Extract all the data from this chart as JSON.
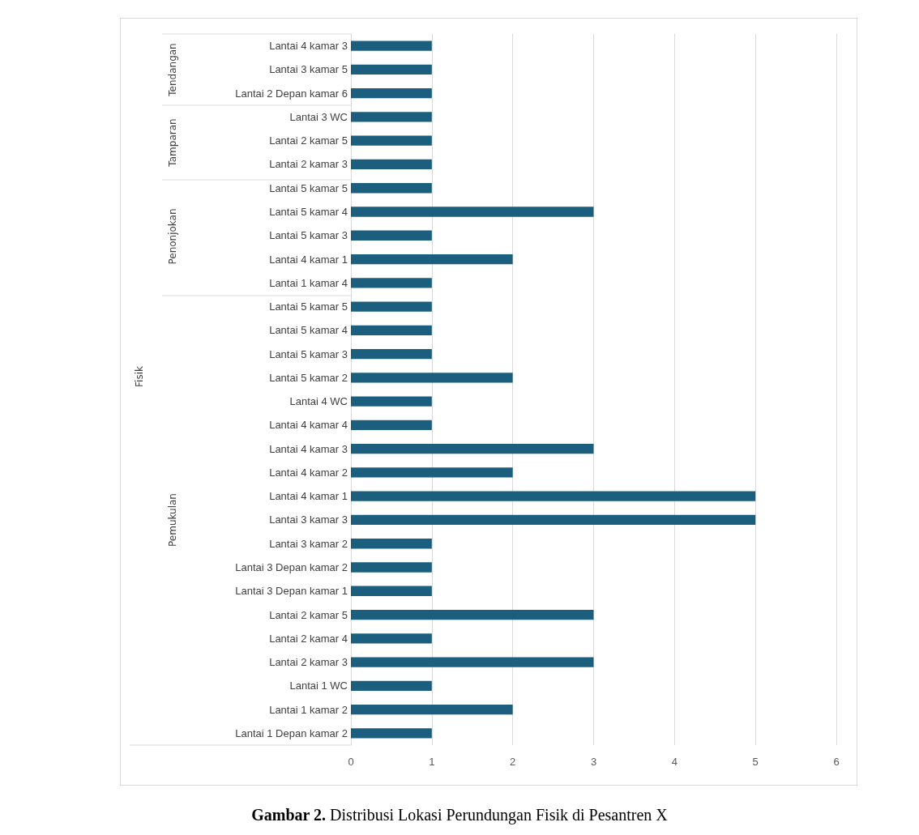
{
  "chart_data": {
    "type": "bar",
    "orientation": "horizontal",
    "title": "Gambar 2. Distribusi Lokasi Perundungan Fisik di Pesantren X",
    "categories": [
      "Lantai 4 kamar 3",
      "Lantai 3 kamar 5",
      "Lantai 2 Depan kamar 6",
      "Lantai 3 WC",
      "Lantai 2 kamar 5",
      "Lantai 2 kamar 3",
      "Lantai 5 kamar 5",
      "Lantai 5 kamar 4",
      "Lantai 5 kamar 3",
      "Lantai 4 kamar 1",
      "Lantai 1 kamar 4",
      "Lantai 5 kamar 5",
      "Lantai 5 kamar 4",
      "Lantai 5 kamar 3",
      "Lantai 5 kamar 2",
      "Lantai 4 WC",
      "Lantai 4 kamar 4",
      "Lantai 4 kamar 3",
      "Lantai 4 kamar 2",
      "Lantai 4 kamar 1",
      "Lantai 3 kamar 3",
      "Lantai 3 kamar 2",
      "Lantai 3 Depan kamar 2",
      "Lantai 3 Depan kamar 1",
      "Lantai 2 kamar 5",
      "Lantai 2 kamar 4",
      "Lantai 2 kamar 3",
      "Lantai 1 WC",
      "Lantai 1 kamar 2",
      "Lantai 1 Depan kamar 2"
    ],
    "values": [
      1,
      1,
      1,
      1,
      1,
      1,
      1,
      3,
      1,
      2,
      1,
      1,
      1,
      1,
      2,
      1,
      1,
      3,
      2,
      5,
      5,
      1,
      1,
      1,
      3,
      1,
      3,
      1,
      2,
      1
    ],
    "color": "#1b5e7e",
    "xlim": [
      0,
      6
    ],
    "xticks": [
      0,
      1,
      2,
      3,
      4,
      5,
      6
    ],
    "grid": "x",
    "annotations": [
      "Tendangan",
      "Tamparan",
      "Penonjokan",
      "Pemukulan",
      "Fisik"
    ]
  }
}
